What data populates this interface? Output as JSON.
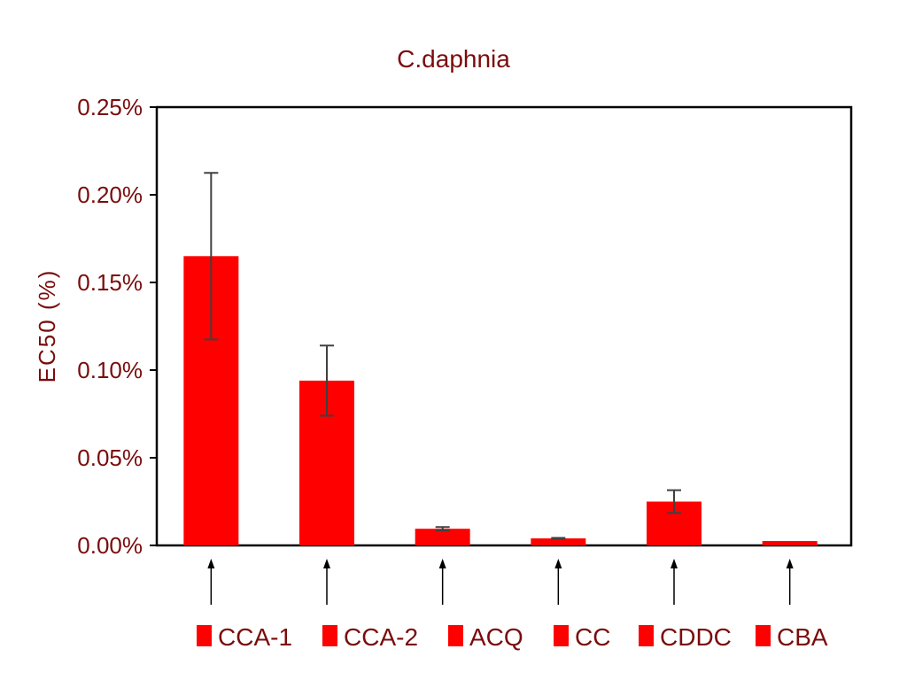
{
  "colors": {
    "bar": "#ff0000",
    "text": "#7a0c0c",
    "axis": "#000000",
    "errorbar": "#404040"
  },
  "chart_data": {
    "type": "bar",
    "title": "C.daphnia",
    "xlabel": "",
    "ylabel": "EC50 (%)",
    "ylim": [
      0,
      0.25
    ],
    "grid": false,
    "legend": "bottom",
    "categories": [
      "CCA-1",
      "CCA-2",
      "ACQ",
      "CC",
      "CDDC",
      "CBA"
    ],
    "values": [
      0.165,
      0.094,
      0.0095,
      0.004,
      0.025,
      0.0025
    ],
    "errors": [
      0.0475,
      0.02,
      0.001,
      0.0003,
      0.0065,
      0
    ],
    "yticks": [
      {
        "value": 0.25,
        "label": "0.25%"
      },
      {
        "value": 0.2,
        "label": "0.20%"
      },
      {
        "value": 0.15,
        "label": "0.15%"
      },
      {
        "value": 0.1,
        "label": "0.10%"
      },
      {
        "value": 0.05,
        "label": "0.05%"
      },
      {
        "value": 0.0,
        "label": "0.00%"
      }
    ]
  }
}
